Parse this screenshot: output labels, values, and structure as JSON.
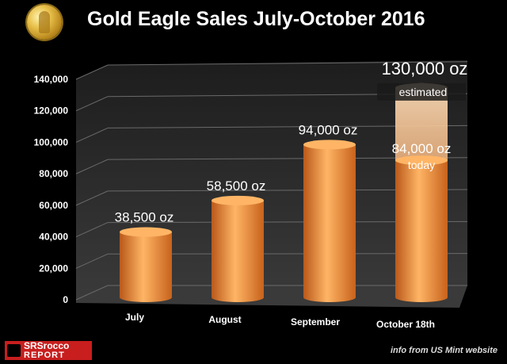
{
  "title": "Gold Eagle Sales July-October 2016",
  "source_text": "info from US Mint website",
  "logo": {
    "line1": "SRSrocco",
    "line2": "REPORT"
  },
  "colors": {
    "bar": "#f08a2c",
    "bar_dark": "#b9581a",
    "bar_light": "#ffb565",
    "bar_estimated": "#f3c99a",
    "background": "#000000",
    "wall": "#2e2e2e",
    "floor": "#3a3a3a",
    "grid": "#6a6a6a"
  },
  "chart_data": {
    "type": "bar",
    "title": "Gold Eagle Sales July-October 2016",
    "categories": [
      "July",
      "August",
      "September",
      "October 18th"
    ],
    "series": [
      {
        "values": [
          38500,
          58500,
          94000,
          84000
        ]
      }
    ],
    "estimated": {
      "category": "October 18th",
      "value": 130000
    },
    "data_labels": [
      "38,500 oz",
      "58,500 oz",
      "94,000 oz",
      "84,000 oz"
    ],
    "data_label_extra": {
      "today_label": "today",
      "estimated_label": "130,000 oz",
      "estimated_note": "estimated"
    },
    "ylim": [
      0,
      140000
    ],
    "yticks": [
      0,
      20000,
      40000,
      60000,
      80000,
      100000,
      120000,
      140000
    ],
    "ytick_labels": [
      "0",
      "20,000",
      "40,000",
      "60,000",
      "80,000",
      "100,000",
      "120,000",
      "140,000"
    ],
    "xlabel": "",
    "ylabel": "",
    "grid": true,
    "legend": "none"
  }
}
